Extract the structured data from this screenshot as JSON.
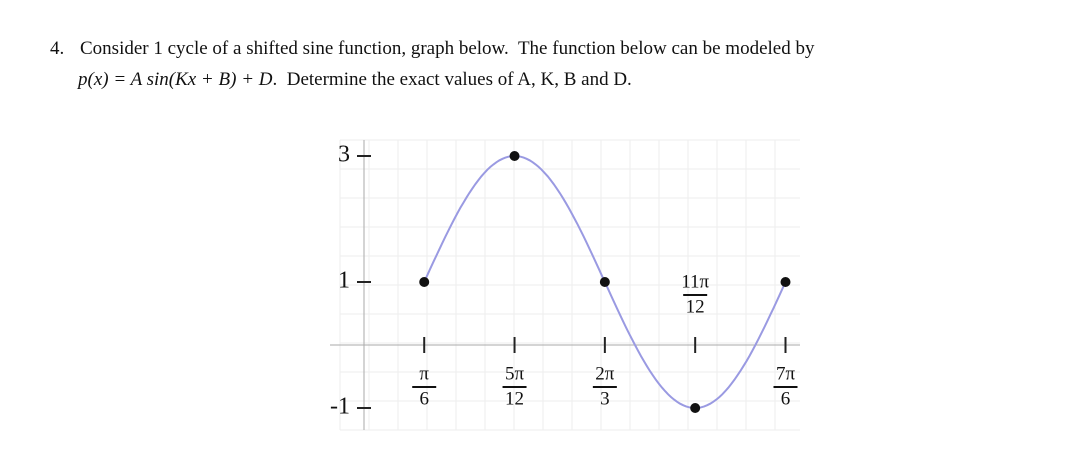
{
  "question": {
    "number": "4.",
    "line1": "Consider 1 cycle of a shifted sine function, graph below.  The function below can be modeled by",
    "formula": "p(x) = A sin(Kx + B) + D",
    "line2": ".  Determine the exact values of A, K, B and D."
  },
  "graph": {
    "x_ticks": [
      {
        "value": 0.5236,
        "numerator": "π",
        "denominator": "6"
      },
      {
        "value": 1.309,
        "numerator": "5π",
        "denominator": "12"
      },
      {
        "value": 2.0944,
        "numerator": "2π",
        "denominator": "3"
      },
      {
        "value": 2.8798,
        "numerator": "11π",
        "denominator": "12"
      },
      {
        "value": 3.6652,
        "numerator": "7π",
        "denominator": "6"
      }
    ],
    "yticks": [
      3,
      1,
      -1
    ],
    "x": [
      0.5236,
      1.309,
      2.0944,
      2.8798,
      3.6652
    ],
    "y": [
      1,
      3,
      1,
      -1,
      1
    ]
  }
}
